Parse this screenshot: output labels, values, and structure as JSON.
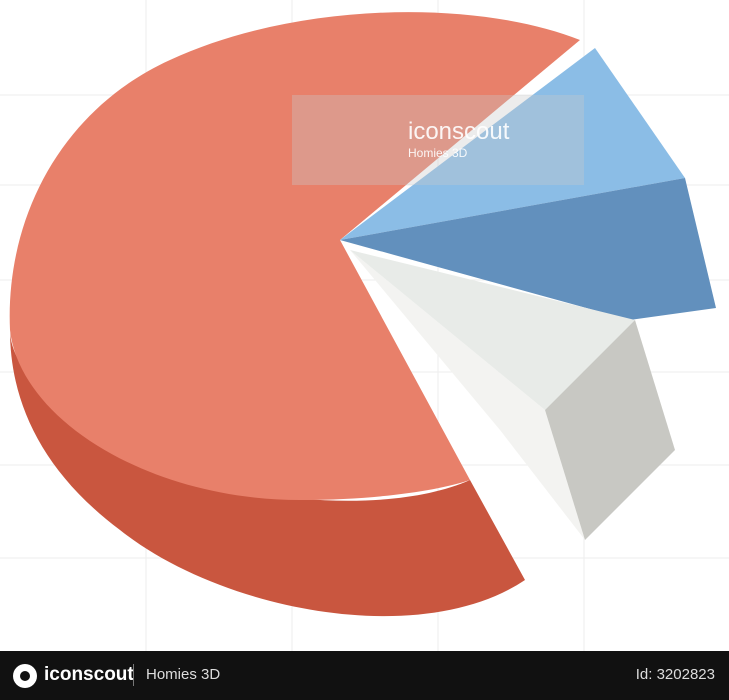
{
  "watermark": {
    "brand": "iconscout",
    "subtitle": "Homies 3D"
  },
  "footer": {
    "brand": "iconscout",
    "subtitle": "Homies 3D",
    "id": "Id: 3202823"
  }
}
